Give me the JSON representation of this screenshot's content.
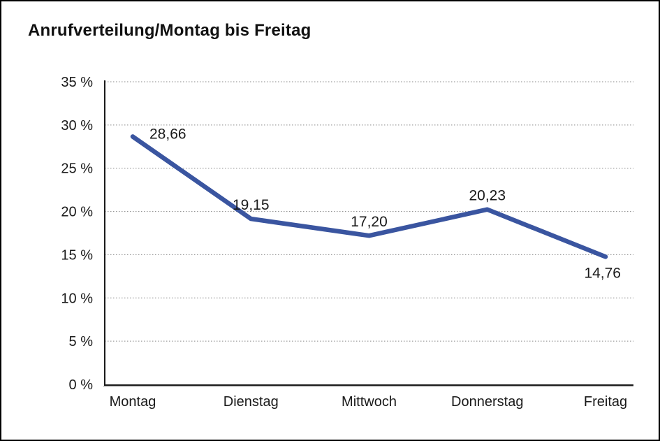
{
  "chart_data": {
    "type": "line",
    "title": "Anrufverteilung/Montag bis Freitag",
    "categories": [
      "Montag",
      "Dienstag",
      "Mittwoch",
      "Donnerstag",
      "Freitag"
    ],
    "values": [
      28.66,
      19.15,
      17.2,
      20.23,
      14.76
    ],
    "value_labels": [
      "28,66",
      "19,15",
      "17,20",
      "20,23",
      "14,76"
    ],
    "label_placement": [
      "right",
      "above",
      "above",
      "above",
      "below"
    ],
    "y_ticks": [
      "0 %",
      "5 %",
      "10 %",
      "15 %",
      "20 %",
      "25 %",
      "30 %",
      "35 %"
    ],
    "y_tick_values": [
      0,
      5,
      10,
      15,
      20,
      25,
      30,
      35
    ],
    "ylim": [
      0,
      35
    ],
    "xlabel": "",
    "ylabel": "",
    "grid": "dotted-horizontal",
    "legend": "none",
    "line_color": "#3A55A0",
    "axis_color": "#1a1a1a",
    "grid_color": "#888888",
    "text_color": "#1a1a1a"
  }
}
